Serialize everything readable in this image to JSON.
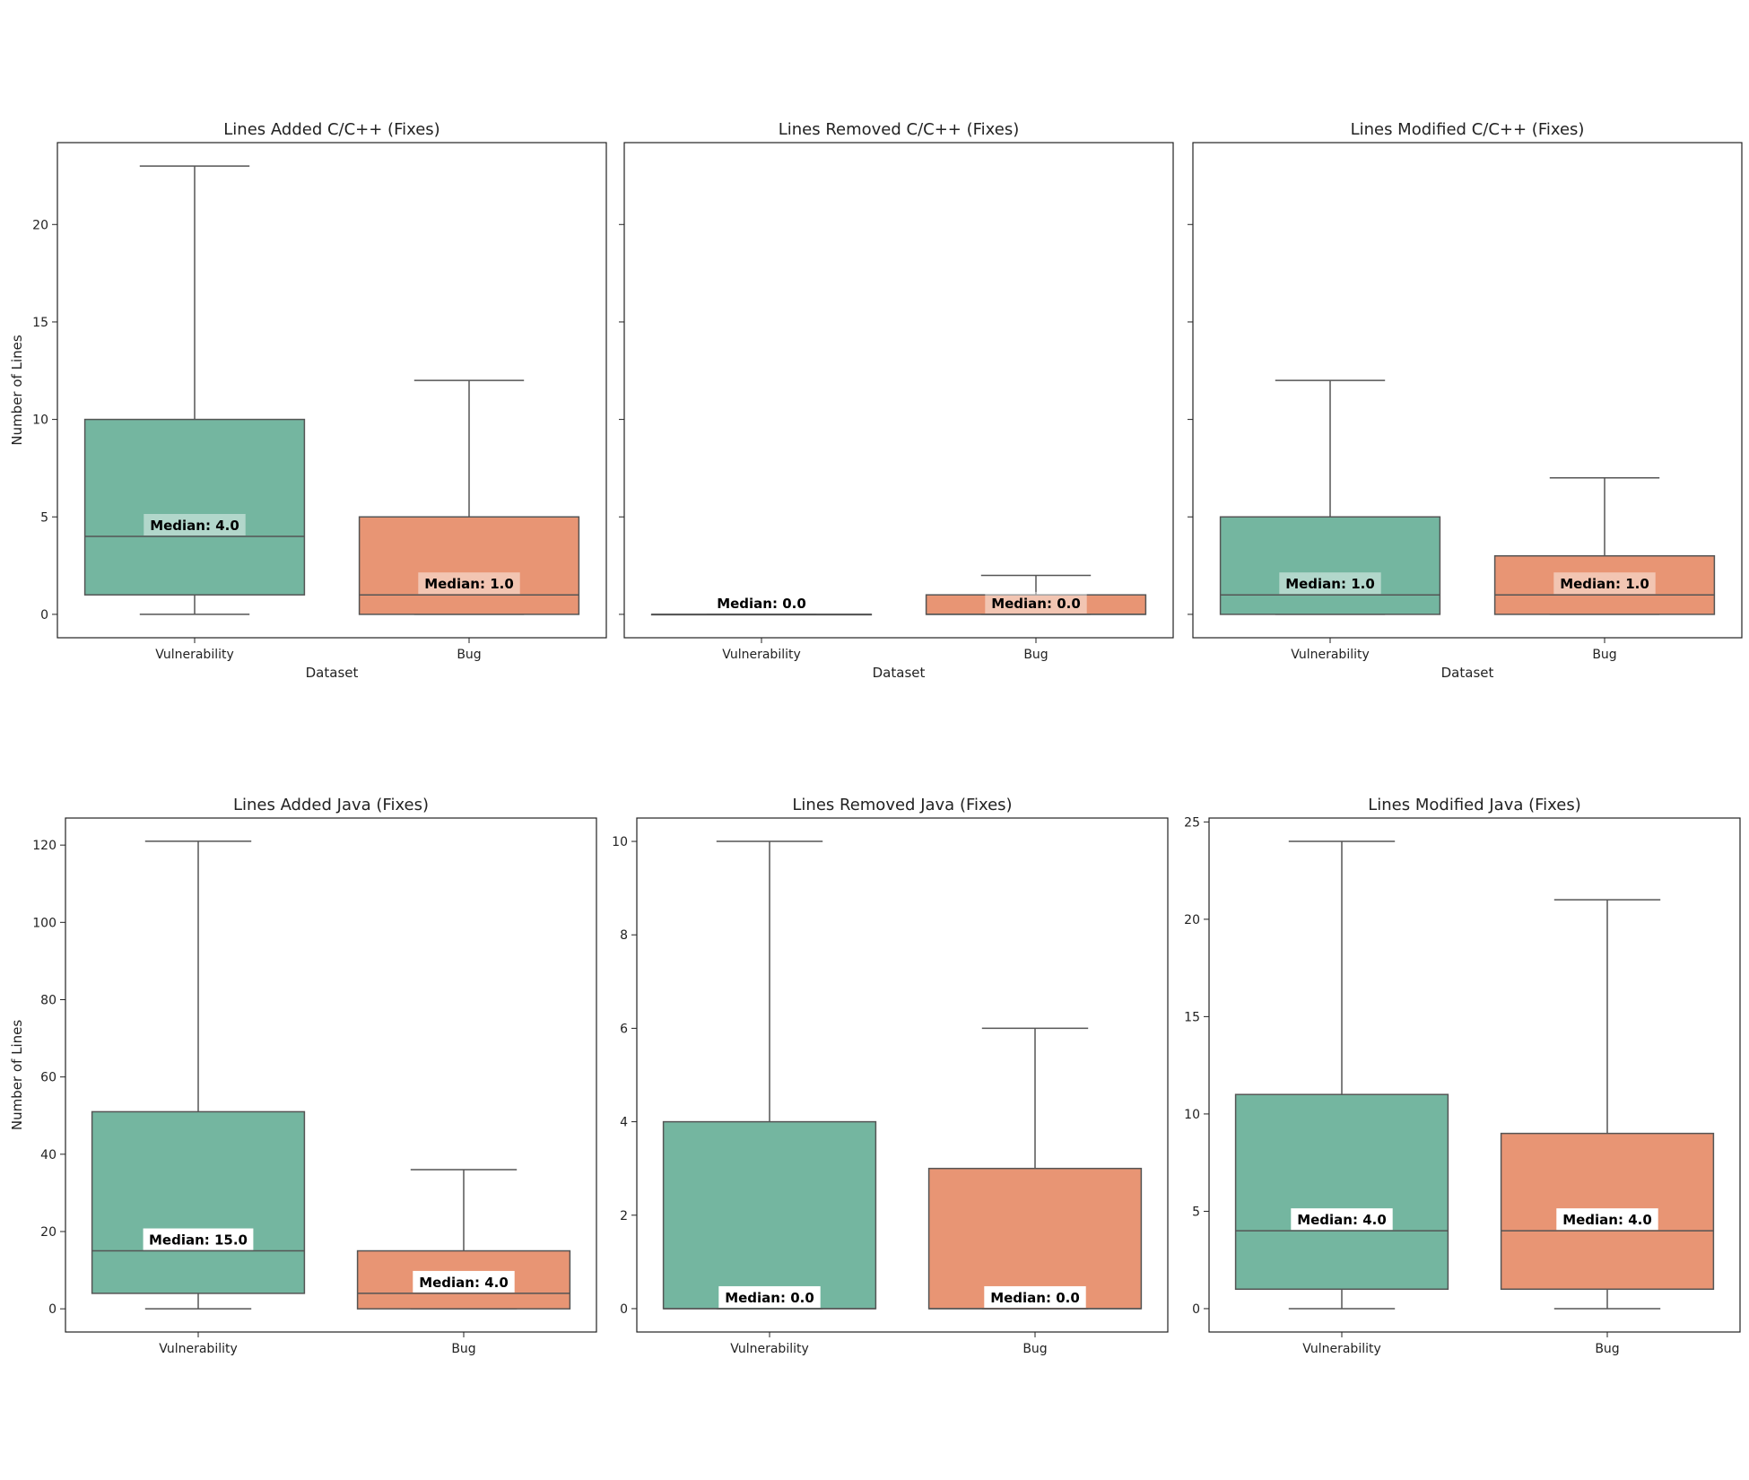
{
  "colors": {
    "vulnerability": "#74b6a0",
    "bug": "#e89574",
    "line": "#555555",
    "frame": "#222222"
  },
  "chart_data": [
    {
      "type": "box",
      "title": "Lines Added C/C++ (Fixes)",
      "xlabel": "Dataset",
      "ylabel": "Number of Lines",
      "ylim": [
        -1.2,
        24.2
      ],
      "yticks": [
        0,
        5,
        10,
        15,
        20
      ],
      "show_ytick_labels": true,
      "categories": [
        "Vulnerability",
        "Bug"
      ],
      "boxes": [
        {
          "category": "Vulnerability",
          "whislo": 0,
          "q1": 1,
          "med": 4,
          "q3": 10,
          "whishi": 23,
          "label": "Median: 4.0",
          "label_bg": "translucent"
        },
        {
          "category": "Bug",
          "whislo": 0,
          "q1": 0,
          "med": 1,
          "q3": 5,
          "whishi": 12,
          "label": "Median: 1.0",
          "label_bg": "translucent"
        }
      ]
    },
    {
      "type": "box",
      "title": "Lines Removed C/C++ (Fixes)",
      "xlabel": "Dataset",
      "ylabel": "",
      "ylim": [
        -1.2,
        24.2
      ],
      "yticks": [
        0,
        5,
        10,
        15,
        20
      ],
      "show_ytick_labels": false,
      "categories": [
        "Vulnerability",
        "Bug"
      ],
      "boxes": [
        {
          "category": "Vulnerability",
          "whislo": 0,
          "q1": 0,
          "med": 0,
          "q3": 0,
          "whishi": 0,
          "label": "Median: 0.0",
          "label_bg": "translucent"
        },
        {
          "category": "Bug",
          "whislo": 0,
          "q1": 0,
          "med": 0,
          "q3": 1,
          "whishi": 2,
          "label": "Median: 0.0",
          "label_bg": "translucent"
        }
      ]
    },
    {
      "type": "box",
      "title": "Lines Modified C/C++ (Fixes)",
      "xlabel": "Dataset",
      "ylabel": "",
      "ylim": [
        -1.2,
        24.2
      ],
      "yticks": [
        0,
        5,
        10,
        15,
        20
      ],
      "show_ytick_labels": false,
      "categories": [
        "Vulnerability",
        "Bug"
      ],
      "boxes": [
        {
          "category": "Vulnerability",
          "whislo": 0,
          "q1": 0,
          "med": 1,
          "q3": 5,
          "whishi": 12,
          "label": "Median: 1.0",
          "label_bg": "translucent"
        },
        {
          "category": "Bug",
          "whislo": 0,
          "q1": 0,
          "med": 1,
          "q3": 3,
          "whishi": 7,
          "label": "Median: 1.0",
          "label_bg": "translucent"
        }
      ]
    },
    {
      "type": "box",
      "title": "Lines Added Java (Fixes)",
      "xlabel": "",
      "ylabel": "Number of Lines",
      "ylim": [
        -6,
        127
      ],
      "yticks": [
        0,
        20,
        40,
        60,
        80,
        100,
        120
      ],
      "show_ytick_labels": true,
      "categories": [
        "Vulnerability",
        "Bug"
      ],
      "boxes": [
        {
          "category": "Vulnerability",
          "whislo": 0,
          "q1": 4,
          "med": 15,
          "q3": 51,
          "whishi": 121,
          "label": "Median: 15.0",
          "label_bg": "white"
        },
        {
          "category": "Bug",
          "whislo": 0,
          "q1": 0,
          "med": 4,
          "q3": 15,
          "whishi": 36,
          "label": "Median: 4.0",
          "label_bg": "white"
        }
      ]
    },
    {
      "type": "box",
      "title": "Lines Removed Java (Fixes)",
      "xlabel": "",
      "ylabel": "",
      "ylim": [
        -0.5,
        10.5
      ],
      "yticks": [
        0,
        2,
        4,
        6,
        8,
        10
      ],
      "show_ytick_labels": true,
      "categories": [
        "Vulnerability",
        "Bug"
      ],
      "boxes": [
        {
          "category": "Vulnerability",
          "whislo": 0,
          "q1": 0,
          "med": 0,
          "q3": 4,
          "whishi": 10,
          "label": "Median: 0.0",
          "label_bg": "white"
        },
        {
          "category": "Bug",
          "whislo": 0,
          "q1": 0,
          "med": 0,
          "q3": 3,
          "whishi": 6,
          "label": "Median: 0.0",
          "label_bg": "white"
        }
      ]
    },
    {
      "type": "box",
      "title": "Lines Modified Java (Fixes)",
      "xlabel": "",
      "ylabel": "",
      "ylim": [
        -1.2,
        25.2
      ],
      "yticks": [
        0,
        5,
        10,
        15,
        20,
        25
      ],
      "show_ytick_labels": true,
      "categories": [
        "Vulnerability",
        "Bug"
      ],
      "boxes": [
        {
          "category": "Vulnerability",
          "whislo": 0,
          "q1": 1,
          "med": 4,
          "q3": 11,
          "whishi": 24,
          "label": "Median: 4.0",
          "label_bg": "white"
        },
        {
          "category": "Bug",
          "whislo": 0,
          "q1": 1,
          "med": 4,
          "q3": 9,
          "whishi": 21,
          "label": "Median: 4.0",
          "label_bg": "white"
        }
      ]
    }
  ]
}
